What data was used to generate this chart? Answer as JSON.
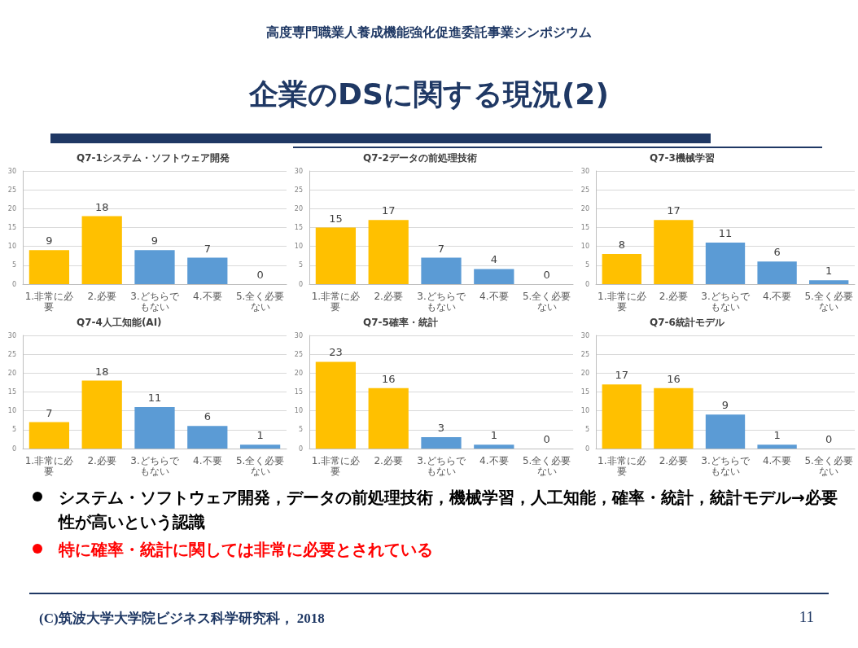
{
  "chart_data": [
    {
      "type": "other",
      "title": "企業のDSに関する現況(2)",
      "subtitle": "高度専門職業人養成機能強化促進委託事業シンポジウム"
    },
    {
      "type": "bar",
      "title": "Q7-1システム・ソフトウェア開発",
      "categories": [
        "1.非常に必要",
        "2.必要",
        "3.どちらでもない",
        "4.不要",
        "5.全く必要ない"
      ],
      "values": [
        9,
        18,
        9,
        7,
        0
      ],
      "colors": [
        "#ffc000",
        "#ffc000",
        "#5b9bd5",
        "#5b9bd5",
        "#5b9bd5"
      ],
      "ylim": [
        0,
        30
      ],
      "yticks": [
        0,
        5,
        10,
        15,
        20,
        25,
        30
      ],
      "grid": "y",
      "data_labels": true
    },
    {
      "type": "bar",
      "title": "Q7-2データの前処理技術",
      "categories": [
        "1.非常に必要",
        "2.必要",
        "3.どちらでもない",
        "4.不要",
        "5.全く必要ない"
      ],
      "values": [
        15,
        17,
        7,
        4,
        0
      ],
      "colors": [
        "#ffc000",
        "#ffc000",
        "#5b9bd5",
        "#5b9bd5",
        "#5b9bd5"
      ],
      "ylim": [
        0,
        30
      ],
      "yticks": [
        0,
        5,
        10,
        15,
        20,
        25,
        30
      ],
      "grid": "y",
      "data_labels": true
    },
    {
      "type": "bar",
      "title": "Q7-3機械学習",
      "categories": [
        "1.非常に必要",
        "2.必要",
        "3.どちらでもない",
        "4.不要",
        "5.全く必要ない"
      ],
      "values": [
        8,
        17,
        11,
        6,
        1
      ],
      "colors": [
        "#ffc000",
        "#ffc000",
        "#5b9bd5",
        "#5b9bd5",
        "#5b9bd5"
      ],
      "ylim": [
        0,
        30
      ],
      "yticks": [
        0,
        5,
        10,
        15,
        20,
        25,
        30
      ],
      "grid": "y",
      "data_labels": true
    },
    {
      "type": "bar",
      "title": "Q7-4人工知能(AI)",
      "categories": [
        "1.非常に必要",
        "2.必要",
        "3.どちらでもない",
        "4.不要",
        "5.全く必要ない"
      ],
      "values": [
        7,
        18,
        11,
        6,
        1
      ],
      "colors": [
        "#ffc000",
        "#ffc000",
        "#5b9bd5",
        "#5b9bd5",
        "#5b9bd5"
      ],
      "ylim": [
        0,
        30
      ],
      "yticks": [
        0,
        5,
        10,
        15,
        20,
        25,
        30
      ],
      "grid": "y",
      "data_labels": true
    },
    {
      "type": "bar",
      "title": "Q7-5確率・統計",
      "categories": [
        "1.非常に必要",
        "2.必要",
        "3.どちらでもない",
        "4.不要",
        "5.全く必要ない"
      ],
      "values": [
        23,
        16,
        3,
        1,
        0
      ],
      "colors": [
        "#ffc000",
        "#ffc000",
        "#5b9bd5",
        "#5b9bd5",
        "#5b9bd5"
      ],
      "ylim": [
        0,
        30
      ],
      "yticks": [
        0,
        5,
        10,
        15,
        20,
        25,
        30
      ],
      "grid": "y",
      "data_labels": true
    },
    {
      "type": "bar",
      "title": "Q7-6統計モデル",
      "categories": [
        "1.非常に必要",
        "2.必要",
        "3.どちらでもない",
        "4.不要",
        "5.全く必要ない"
      ],
      "values": [
        17,
        16,
        9,
        1,
        0
      ],
      "colors": [
        "#ffc000",
        "#ffc000",
        "#5b9bd5",
        "#5b9bd5",
        "#5b9bd5"
      ],
      "ylim": [
        0,
        30
      ],
      "yticks": [
        0,
        5,
        10,
        15,
        20,
        25,
        30
      ],
      "grid": "y",
      "data_labels": true
    },
    {
      "type": "other",
      "annotations": [
        "システム・ソフトウェア開発，データの前処理技術，機械学習，人工知能，確率・統計，統計モデル→必要性が高いという認識",
        "特に確率・統計に関しては非常に必要とされている",
        "(C)筑波大学大学院ビジネス科学研究科， 2018",
        "11"
      ]
    }
  ]
}
